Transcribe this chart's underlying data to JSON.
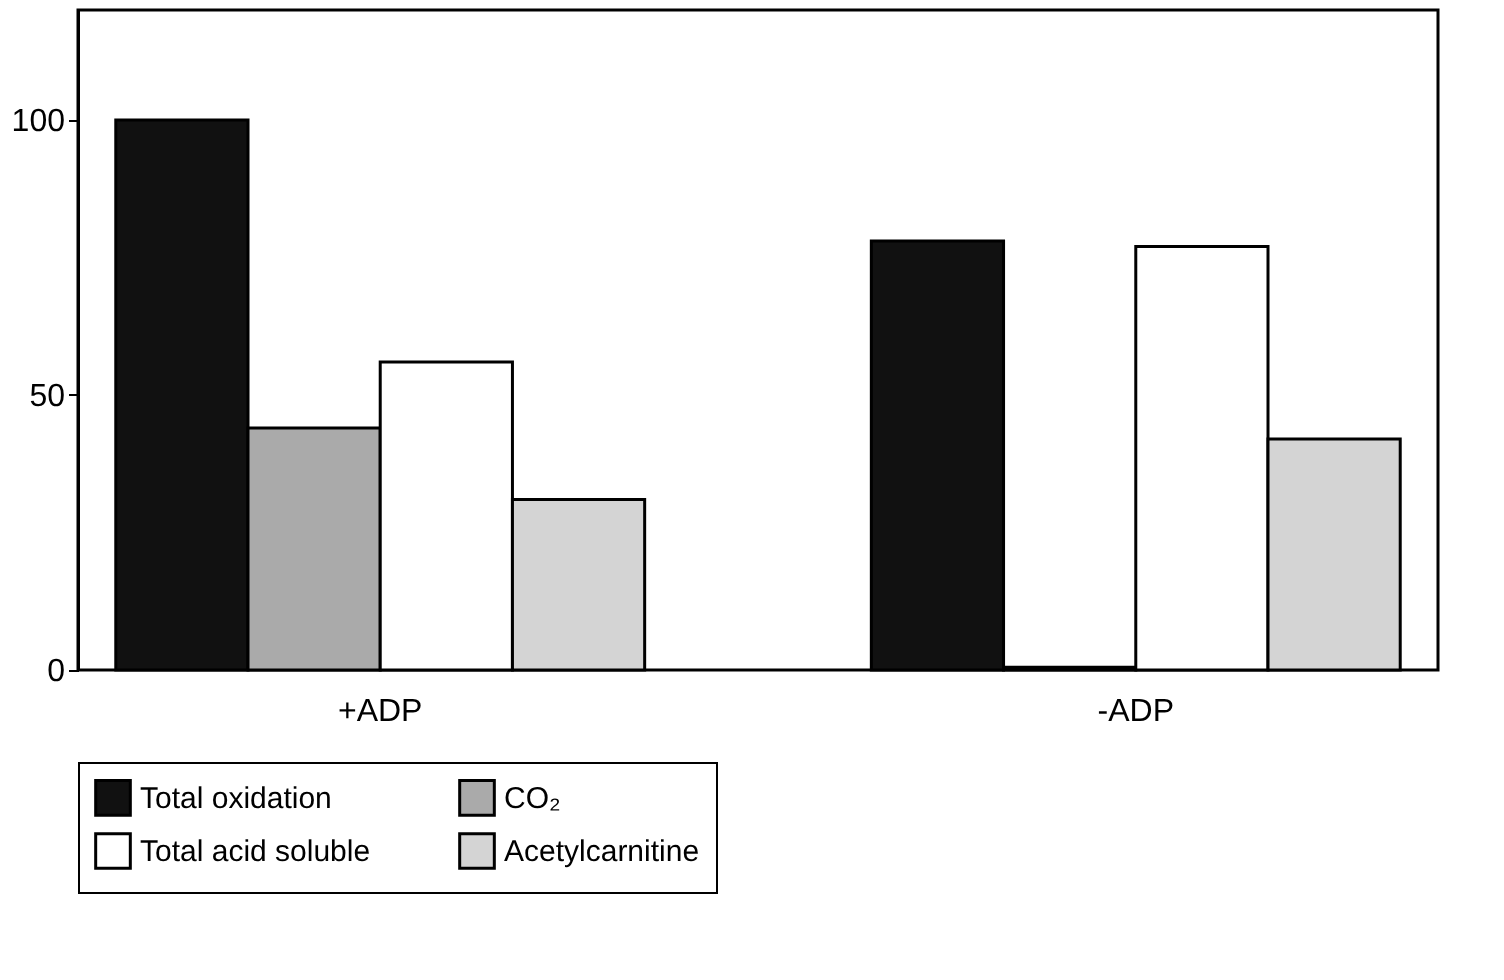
{
  "chart_data": {
    "type": "bar",
    "categories": [
      "+ADP",
      "-ADP"
    ],
    "series": [
      {
        "name": "Total oxidation",
        "color": "#111111",
        "values": [
          100,
          78
        ]
      },
      {
        "name": "CO₂",
        "color": "#aaaaaa",
        "values": [
          44,
          0.5
        ]
      },
      {
        "name": "Total acid soluble",
        "color": "#ffffff",
        "values": [
          56,
          77
        ]
      },
      {
        "name": "Acetylcarnitine",
        "color": "#d4d4d4",
        "values": [
          31,
          42
        ]
      }
    ],
    "ylim": [
      0,
      120
    ],
    "yticks": [
      0,
      50,
      100
    ],
    "grid": false,
    "legend": "bottom"
  }
}
